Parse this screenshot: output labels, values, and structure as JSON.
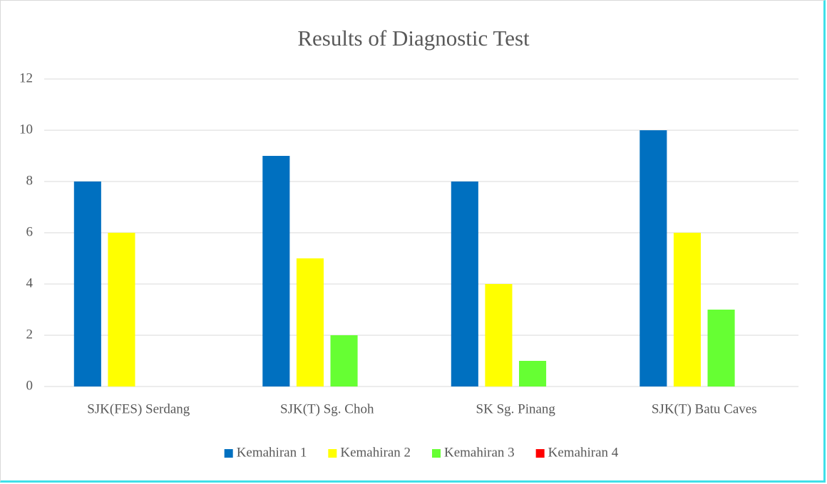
{
  "chart_data": {
    "type": "bar",
    "title": "Results of Diagnostic Test",
    "categories": [
      "SJK(FES) Serdang",
      "SJK(T) Sg. Choh",
      "SK Sg. Pinang",
      "SJK(T) Batu Caves"
    ],
    "series": [
      {
        "name": "Kemahiran 1",
        "color": "#0070c0",
        "values": [
          8,
          9,
          8,
          10
        ]
      },
      {
        "name": "Kemahiran 2",
        "color": "#ffff00",
        "values": [
          6,
          5,
          4,
          6
        ]
      },
      {
        "name": "Kemahiran 3",
        "color": "#66ff33",
        "values": [
          0,
          2,
          1,
          3
        ]
      },
      {
        "name": "Kemahiran 4",
        "color": "#ff0000",
        "values": [
          0,
          0,
          0,
          0
        ]
      }
    ],
    "ylim": [
      0,
      12
    ],
    "yticks": [
      0,
      2,
      4,
      6,
      8,
      10,
      12
    ],
    "grid": true,
    "legend": "bottom"
  }
}
